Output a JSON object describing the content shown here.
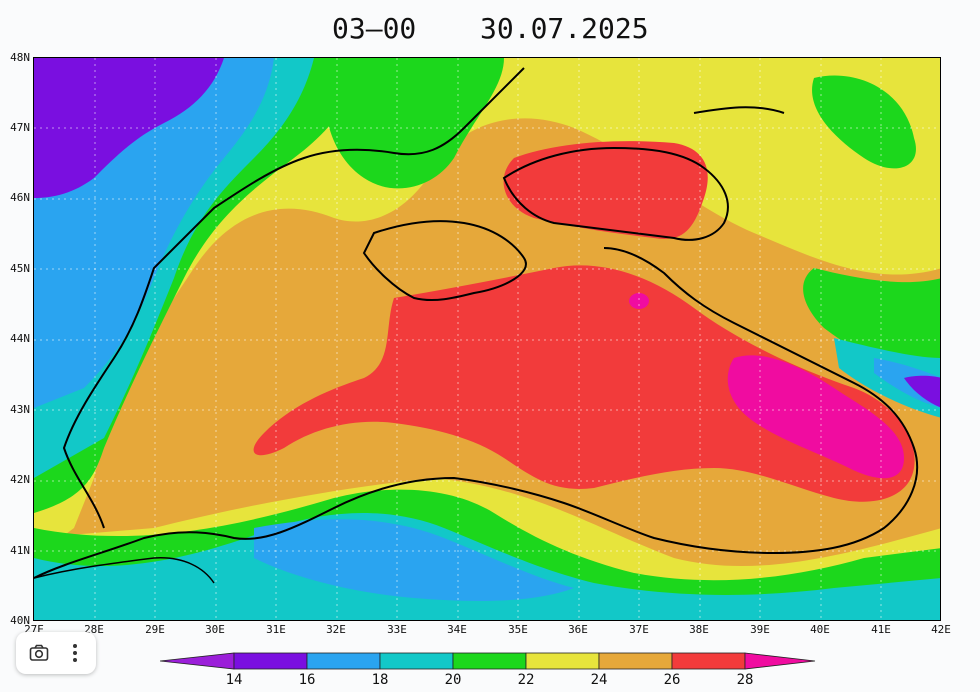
{
  "header": {
    "time": "03–00",
    "date": "30.07.2025"
  },
  "axes": {
    "lat_labels": [
      "48N",
      "47N",
      "46N",
      "45N",
      "44N",
      "43N",
      "42N",
      "41N",
      "40N"
    ],
    "lon_labels": [
      "27E",
      "28E",
      "29E",
      "30E",
      "31E",
      "32E",
      "33E",
      "34E",
      "35E",
      "36E",
      "37E",
      "38E",
      "39E",
      "40E",
      "41E",
      "42E"
    ]
  },
  "legend": {
    "ticks": [
      "14",
      "16",
      "18",
      "20",
      "22",
      "24",
      "26",
      "28"
    ],
    "colors": [
      "#9b1fd9",
      "#7a0fe0",
      "#2aa4f0",
      "#12c8c8",
      "#1cd71c",
      "#e7e43c",
      "#e6a83a",
      "#f23b3b",
      "#f00ca0"
    ]
  },
  "toolbar": {
    "camera_icon": "camera-icon",
    "more_icon": "more-vertical-icon"
  }
}
